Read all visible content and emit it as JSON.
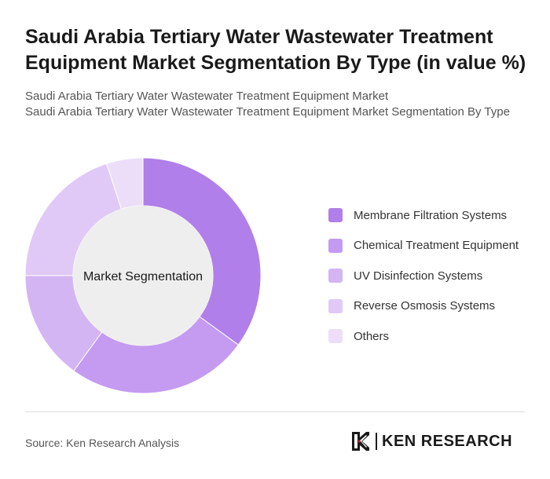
{
  "header": {
    "title": "Saudi Arabia Tertiary Water Wastewater Treatment Equipment Market Segmentation By Type (in value %)",
    "subtitle_line1": "Saudi Arabia Tertiary Water Wastewater Treatment Equipment Market",
    "subtitle_line2": "Saudi Arabia Tertiary Water Wastewater Treatment Equipment Market Segmentation By Type"
  },
  "chart_data": {
    "type": "pie",
    "variant": "donut",
    "center_label": "Market Segmentation",
    "categories": [
      "Membrane Filtration Systems",
      "Chemical Treatment Equipment",
      "UV Disinfection Systems",
      "Reverse Osmosis Systems",
      "Others"
    ],
    "values": [
      35,
      25,
      15,
      20,
      5
    ],
    "colors": [
      "#b07fe9",
      "#c49bf0",
      "#d4b5f3",
      "#e0c9f6",
      "#ecdef9"
    ],
    "legend_position": "right"
  },
  "footer": {
    "source": "Source: Ken Research Analysis",
    "logo_text": "KEN RESEARCH"
  }
}
